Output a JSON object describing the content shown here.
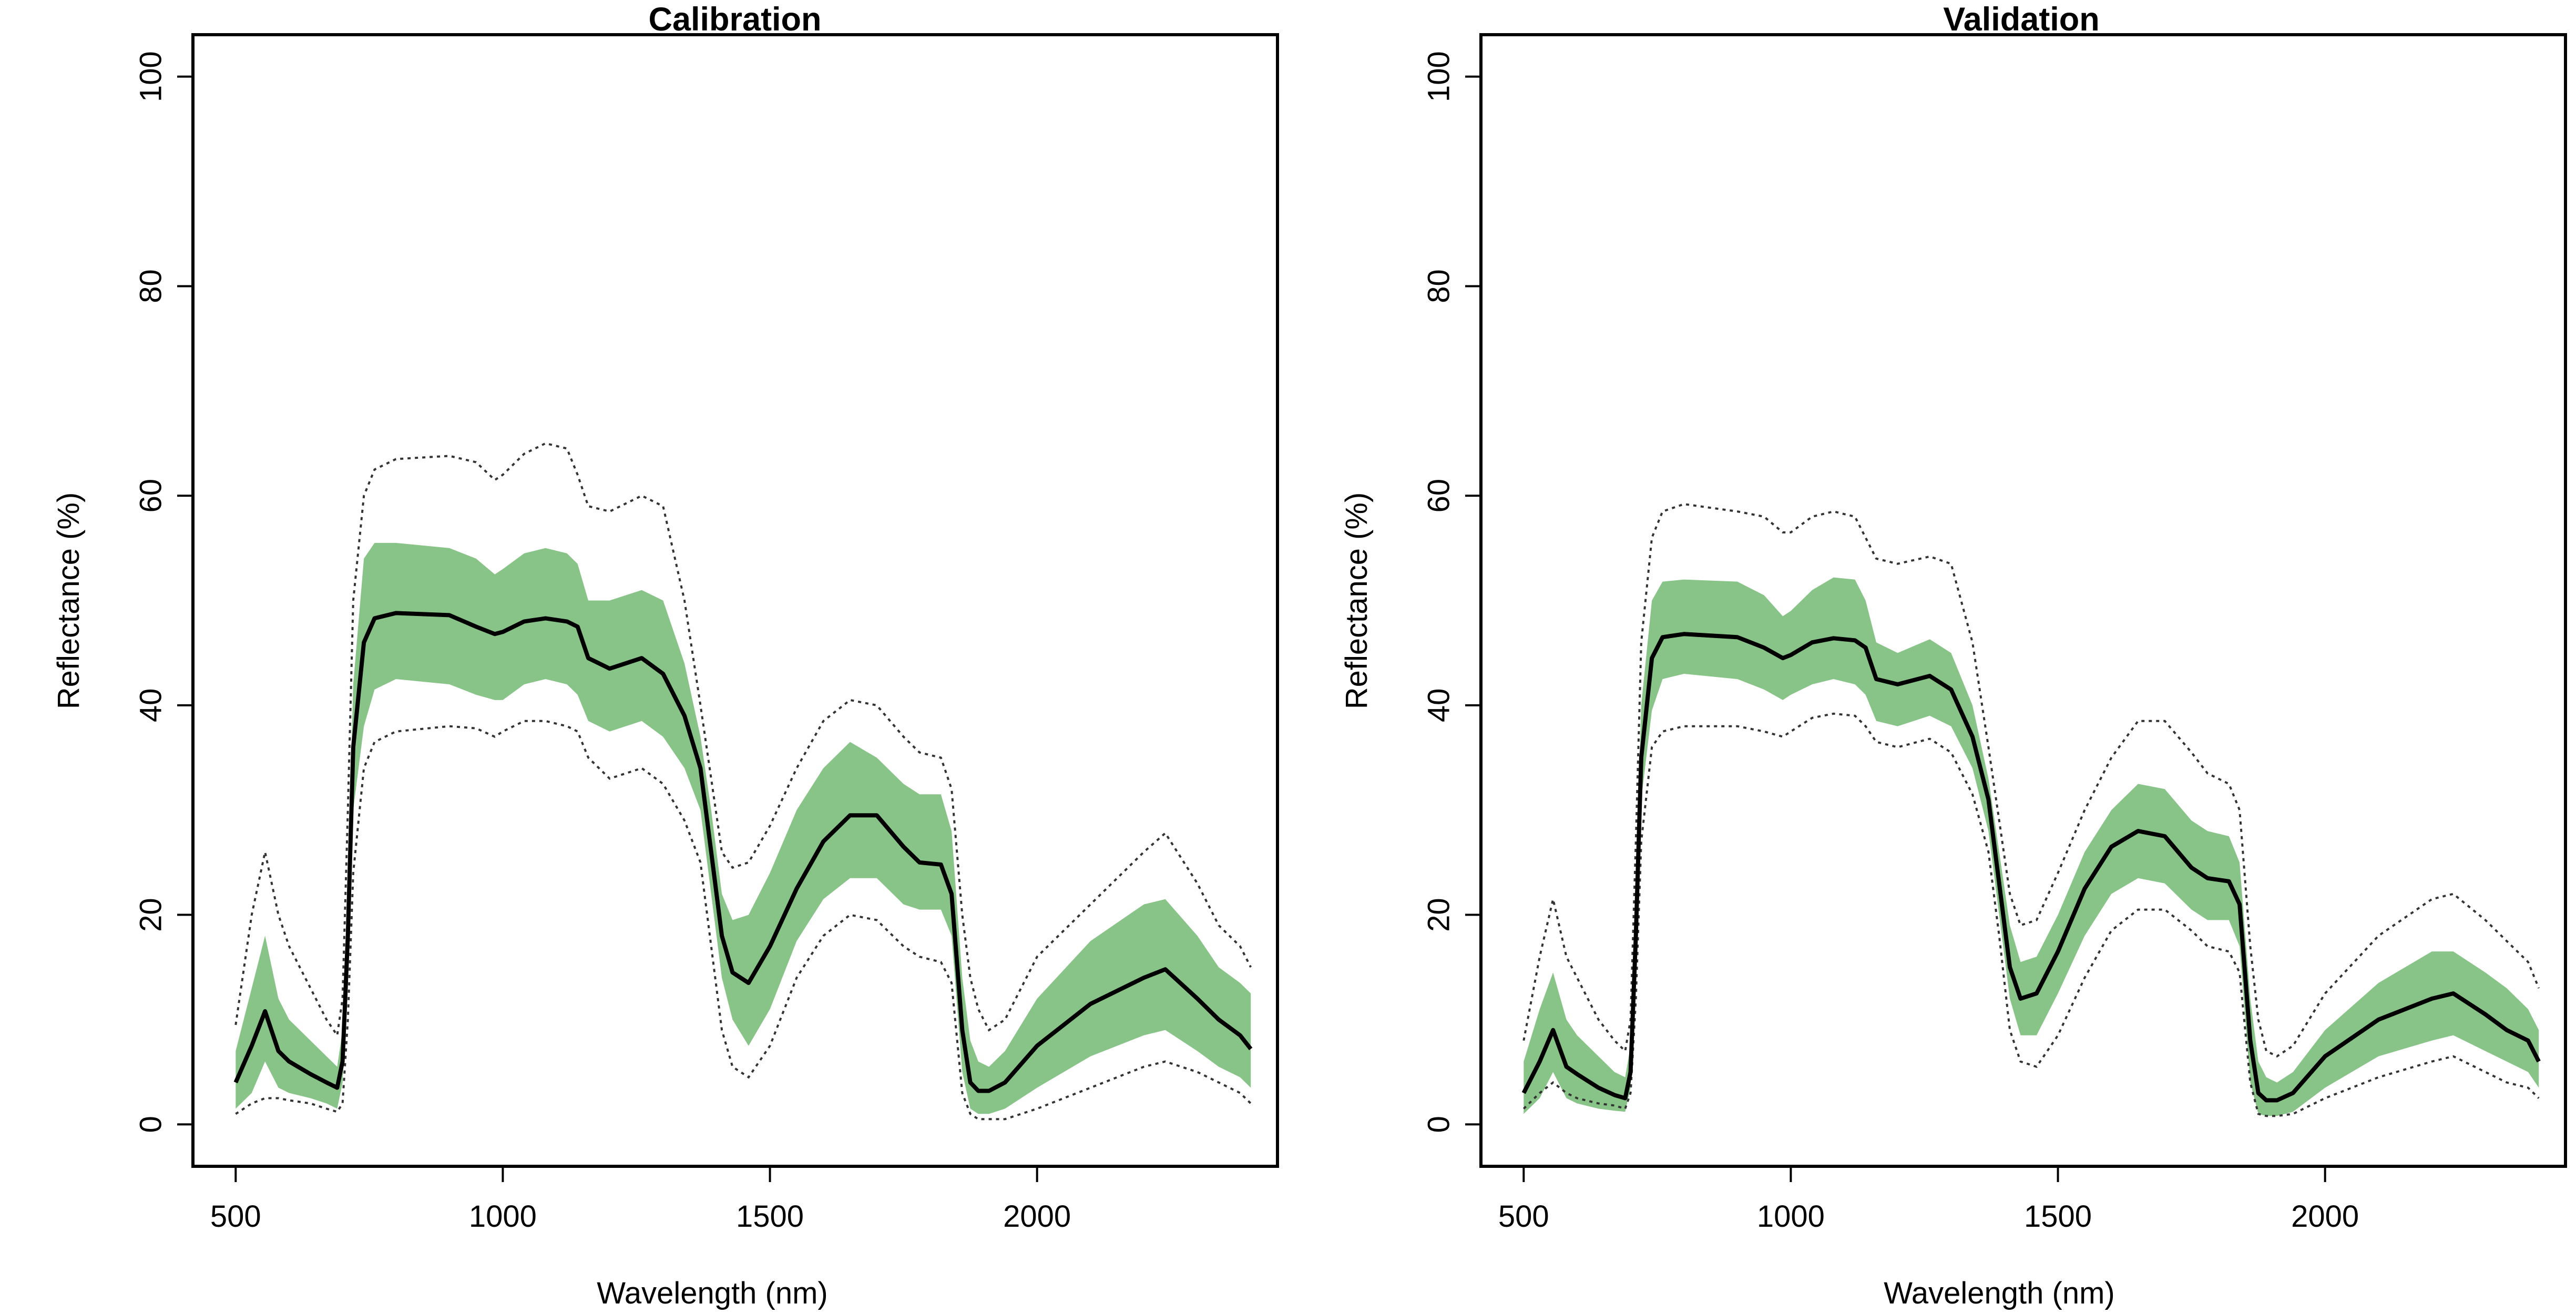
{
  "colors": {
    "band": "#88c488",
    "mean_line": "#000000",
    "range_line": "#333333",
    "frame": "#000000"
  },
  "chart_data": [
    {
      "type": "line",
      "title": "Calibration",
      "xlabel": "Wavelength (nm)",
      "ylabel": "Reflectance (%)",
      "xlim": [
        420,
        2450
      ],
      "ylim": [
        -4,
        104
      ],
      "xticks": [
        500,
        1000,
        1500,
        2000
      ],
      "yticks": [
        0,
        20,
        40,
        60,
        80,
        100
      ],
      "grid": false,
      "legend": "none",
      "x": [
        500,
        530,
        555,
        580,
        600,
        640,
        670,
        690,
        700,
        710,
        720,
        740,
        760,
        800,
        900,
        950,
        985,
        1000,
        1040,
        1080,
        1120,
        1140,
        1160,
        1200,
        1260,
        1300,
        1340,
        1370,
        1390,
        1410,
        1430,
        1460,
        1500,
        1550,
        1600,
        1650,
        1700,
        1750,
        1780,
        1820,
        1840,
        1860,
        1875,
        1890,
        1910,
        1940,
        2000,
        2100,
        2200,
        2240,
        2300,
        2340,
        2380,
        2400
      ],
      "series": [
        {
          "role": "max",
          "style": "dotted",
          "values": [
            9.5,
            20,
            26,
            20,
            17,
            13,
            10,
            8.5,
            12,
            30,
            50,
            60,
            62.5,
            63.5,
            63.8,
            63.2,
            61.5,
            62,
            64,
            65,
            64.5,
            62,
            59,
            58.5,
            60,
            59,
            50,
            40,
            33,
            26,
            24.5,
            25,
            28.5,
            34,
            38.5,
            40.5,
            40,
            37,
            35.5,
            35,
            32,
            20,
            14,
            11,
            9,
            10,
            16,
            21,
            26,
            27.8,
            23,
            19,
            17,
            15
          ]
        },
        {
          "role": "q_high",
          "style": "band",
          "values": [
            7,
            13,
            18,
            12,
            10,
            8,
            6.5,
            5.5,
            9,
            23,
            42,
            54,
            55.5,
            55.5,
            55,
            54,
            52.5,
            53,
            54.5,
            55,
            54.5,
            53.5,
            50,
            50,
            51,
            50,
            44,
            37,
            30,
            22,
            19.5,
            20,
            24,
            30,
            34,
            36.5,
            35,
            32.5,
            31.5,
            31.5,
            28,
            14,
            8,
            6,
            5.5,
            7,
            12,
            17.5,
            21,
            21.5,
            18,
            15,
            13.5,
            12.5
          ]
        },
        {
          "role": "mean",
          "style": "solid",
          "values": [
            4,
            7.5,
            10.8,
            7,
            6,
            4.8,
            4,
            3.5,
            6,
            18,
            36,
            46,
            48.3,
            48.8,
            48.6,
            47.5,
            46.8,
            47,
            48,
            48.3,
            48,
            47.5,
            44.5,
            43.5,
            44.5,
            43,
            39,
            34,
            26,
            18,
            14.5,
            13.5,
            17,
            22.5,
            27,
            29.5,
            29.5,
            26.5,
            25,
            24.8,
            22,
            9,
            4,
            3.2,
            3.2,
            4,
            7.5,
            11.5,
            14,
            14.8,
            12,
            10,
            8.5,
            7.2
          ]
        },
        {
          "role": "q_low",
          "style": "band",
          "values": [
            1.5,
            3,
            6,
            3.5,
            3,
            2.5,
            2,
            1.5,
            4,
            15,
            30,
            38,
            41.5,
            42.5,
            42,
            41,
            40.5,
            40.5,
            42,
            42.5,
            42,
            41,
            38.5,
            37.5,
            38.5,
            37,
            34,
            30,
            22,
            14,
            10,
            7.5,
            11,
            17.5,
            21.5,
            23.5,
            23.5,
            21,
            20.5,
            20.5,
            18,
            5,
            1.5,
            1,
            1,
            1.5,
            3.5,
            6.5,
            8.5,
            9,
            7,
            5.5,
            4.5,
            3.5
          ]
        },
        {
          "role": "min",
          "style": "dotted",
          "values": [
            1,
            2,
            2.5,
            2.5,
            2.3,
            2,
            1.5,
            1.2,
            2,
            10,
            24,
            34,
            36.5,
            37.5,
            38,
            37.8,
            37,
            37.5,
            38.5,
            38.5,
            38,
            37.5,
            35,
            33,
            34,
            32.5,
            29,
            25,
            17,
            9,
            5.5,
            4.5,
            7.5,
            14,
            18,
            20,
            19.5,
            17,
            16,
            15.5,
            13.5,
            3,
            1,
            0.5,
            0.5,
            0.5,
            1.5,
            3.5,
            5.5,
            6,
            5,
            4,
            3,
            2
          ]
        }
      ]
    },
    {
      "type": "line",
      "title": "Validation",
      "xlabel": "Wavelength (nm)",
      "ylabel": "Reflectance (%)",
      "xlim": [
        420,
        2450
      ],
      "ylim": [
        -4,
        104
      ],
      "xticks": [
        500,
        1000,
        1500,
        2000
      ],
      "yticks": [
        0,
        20,
        40,
        60,
        80,
        100
      ],
      "grid": false,
      "legend": "none",
      "x": [
        500,
        530,
        555,
        580,
        600,
        640,
        670,
        690,
        700,
        710,
        720,
        740,
        760,
        800,
        900,
        950,
        985,
        1000,
        1040,
        1080,
        1120,
        1140,
        1160,
        1200,
        1260,
        1300,
        1340,
        1370,
        1390,
        1410,
        1430,
        1460,
        1500,
        1550,
        1600,
        1650,
        1700,
        1750,
        1780,
        1820,
        1840,
        1860,
        1875,
        1890,
        1910,
        1940,
        2000,
        2100,
        2200,
        2240,
        2300,
        2340,
        2380,
        2400
      ],
      "series": [
        {
          "role": "max",
          "style": "dotted",
          "values": [
            8,
            16,
            21.5,
            16,
            14,
            10,
            8,
            7,
            10,
            27,
            46,
            56,
            58.5,
            59.2,
            58.5,
            58,
            56.5,
            56.5,
            58,
            58.5,
            58,
            56,
            54,
            53.5,
            54.2,
            53.5,
            46,
            36,
            29,
            22,
            19,
            19.5,
            24,
            30,
            35,
            38.5,
            38.5,
            35.5,
            33.5,
            32.5,
            30,
            17,
            10,
            7,
            6.5,
            7.5,
            12.5,
            18,
            21.5,
            22,
            19.5,
            17.5,
            15.5,
            13
          ]
        },
        {
          "role": "q_high",
          "style": "band",
          "values": [
            6,
            11,
            14.5,
            10,
            8.5,
            6.5,
            5,
            4.5,
            7.5,
            22,
            40,
            50,
            51.8,
            52,
            51.8,
            50.5,
            48.5,
            49,
            51,
            52.2,
            52,
            50,
            46,
            45,
            46.3,
            45,
            40,
            33,
            26,
            19,
            15.5,
            16,
            20,
            26,
            30,
            32.5,
            32,
            29,
            28,
            27.5,
            25,
            12,
            6,
            4.5,
            4,
            5,
            9,
            13.5,
            16.5,
            16.5,
            14.5,
            13,
            11,
            9
          ]
        },
        {
          "role": "mean",
          "style": "solid",
          "values": [
            3,
            6,
            9,
            5.5,
            4.8,
            3.5,
            2.8,
            2.5,
            5,
            18,
            35,
            44.5,
            46.5,
            46.8,
            46.5,
            45.5,
            44.5,
            44.8,
            46,
            46.4,
            46.2,
            45.5,
            42.5,
            42,
            42.8,
            41.5,
            37,
            31,
            23,
            15,
            12,
            12.5,
            16.5,
            22.5,
            26.5,
            28,
            27.5,
            24.5,
            23.5,
            23.2,
            21,
            8,
            3,
            2.3,
            2.3,
            3,
            6.5,
            10,
            12,
            12.5,
            10.5,
            9,
            8,
            6
          ]
        },
        {
          "role": "q_low",
          "style": "band",
          "values": [
            1,
            2.5,
            5,
            2.5,
            2,
            1.5,
            1.3,
            1.2,
            3.5,
            15,
            31,
            39.5,
            42.5,
            43,
            42.5,
            41.5,
            40.5,
            41,
            42,
            42.5,
            42,
            41,
            38.5,
            38,
            39,
            38,
            34,
            28,
            20,
            12,
            8.5,
            8.5,
            12.5,
            18,
            22,
            23.5,
            23,
            20.5,
            19.5,
            19.5,
            17,
            4,
            1,
            0.8,
            0.8,
            1.2,
            3.5,
            6.5,
            8,
            8.5,
            7,
            6,
            5,
            3.5
          ]
        },
        {
          "role": "min",
          "style": "dotted",
          "values": [
            1.5,
            3,
            4,
            3,
            2.5,
            2,
            1.8,
            1.5,
            3,
            12,
            27,
            36,
            37.5,
            38,
            38,
            37.5,
            37,
            37.5,
            38.8,
            39.2,
            39,
            38,
            36.5,
            36,
            36.8,
            35.5,
            31.5,
            26,
            18,
            9,
            6,
            5.5,
            8.5,
            14,
            18.5,
            20.5,
            20.5,
            18.5,
            17,
            16.5,
            14.5,
            4,
            1,
            0.8,
            0.8,
            1,
            2.5,
            4.5,
            6,
            6.5,
            5,
            4,
            3.5,
            2.5
          ]
        }
      ]
    }
  ]
}
